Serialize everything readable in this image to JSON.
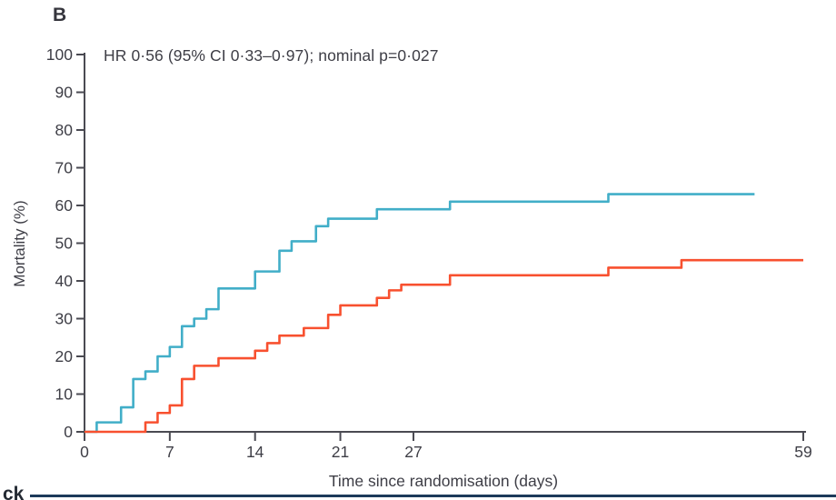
{
  "panel_label": "B",
  "annotation": "HR 0·56 (95% CI 0·33–0·97); nominal p=0·027",
  "bottom_left_clipped_text": "ck",
  "colors": {
    "series_teal": "#41aec8",
    "series_red": "#f8502f",
    "axis": "#4a4a52",
    "tick_text": "#3e3e46",
    "bottom_rule": "#1d3a5a"
  },
  "chart_data": {
    "type": "line",
    "subtype": "kaplan-meier-step",
    "title": "",
    "xlabel": "Time since randomisation (days)",
    "ylabel": "Mortality (%)",
    "xlim": [
      0,
      59
    ],
    "ylim": [
      0,
      100
    ],
    "x_ticks": [
      0,
      7,
      14,
      21,
      27,
      59
    ],
    "y_ticks": [
      0,
      10,
      20,
      30,
      40,
      50,
      60,
      70,
      80,
      90,
      100
    ],
    "grid": false,
    "legend_position": "none",
    "annotation": "HR 0·56 (95% CI 0·33–0·97); nominal p=0·027",
    "series": [
      {
        "name": "series_teal",
        "color": "#41aec8",
        "points": [
          [
            0,
            0
          ],
          [
            1,
            2.5
          ],
          [
            3,
            6.5
          ],
          [
            4,
            14
          ],
          [
            5,
            16
          ],
          [
            6,
            20
          ],
          [
            7,
            22.5
          ],
          [
            8,
            28
          ],
          [
            9,
            30
          ],
          [
            10,
            32.5
          ],
          [
            11,
            38
          ],
          [
            14,
            42.5
          ],
          [
            16,
            48
          ],
          [
            17,
            50.5
          ],
          [
            19,
            54.5
          ],
          [
            20,
            56.5
          ],
          [
            24,
            59
          ],
          [
            30,
            61
          ],
          [
            43,
            63
          ],
          [
            55,
            63
          ]
        ]
      },
      {
        "name": "series_red",
        "color": "#f8502f",
        "points": [
          [
            0,
            0
          ],
          [
            5,
            2.5
          ],
          [
            6,
            5
          ],
          [
            7,
            7
          ],
          [
            8,
            14
          ],
          [
            9,
            17.5
          ],
          [
            11,
            19.5
          ],
          [
            14,
            21.5
          ],
          [
            15,
            23.5
          ],
          [
            16,
            25.5
          ],
          [
            18,
            27.5
          ],
          [
            20,
            31
          ],
          [
            21,
            33.5
          ],
          [
            24,
            35.5
          ],
          [
            25,
            37.5
          ],
          [
            26,
            39
          ],
          [
            30,
            41.5
          ],
          [
            43,
            43.5
          ],
          [
            49,
            45.5
          ],
          [
            59,
            45.5
          ]
        ]
      }
    ]
  }
}
